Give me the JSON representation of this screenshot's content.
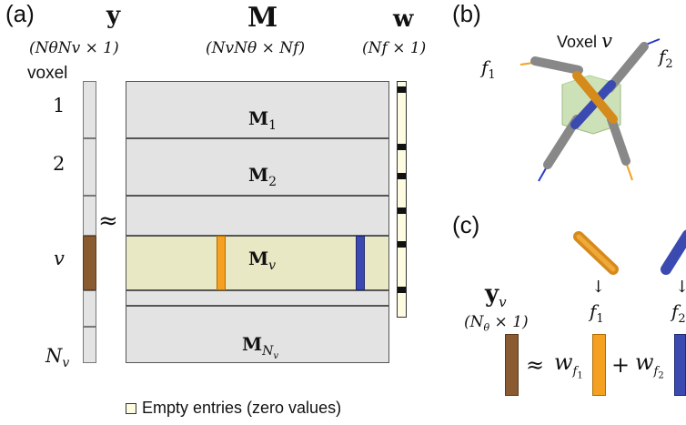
{
  "panels": {
    "a": "(a)",
    "b": "(b)",
    "c": "(c)"
  },
  "panel_a": {
    "y_symbol": "y",
    "y_dim": "(NθNv × 1)",
    "voxel_label": "voxel",
    "voxel_rows": [
      "1",
      "2",
      "v",
      "Nv"
    ],
    "approx": "≈",
    "M_symbol": "M",
    "M_dim": "(NvNθ × Nf)",
    "M_blocks": [
      {
        "base": "M",
        "sub": "1"
      },
      {
        "base": "M",
        "sub": "2"
      },
      {
        "base": "M",
        "sub": "v"
      },
      {
        "base": "M",
        "sub": "Nv"
      }
    ],
    "w_symbol": "w",
    "w_dim": "(Nf × 1)",
    "legend_text": "Empty entries (zero values)"
  },
  "panel_b": {
    "voxel_label": "Voxel",
    "voxel_symbol": "v",
    "f1": "f1",
    "f2": "f2"
  },
  "panel_c": {
    "y_symbol": "y",
    "y_sub": "v",
    "y_dim": "(Nθ × 1)",
    "f1": "f1",
    "f2": "f2",
    "arrow": "↓",
    "approx": "≈",
    "w1_base": "w",
    "w1_sub": "f1",
    "plus": "+",
    "w2_base": "w",
    "w2_sub": "f2"
  },
  "colors": {
    "grey_fill": "#e3e3e3",
    "border": "#555555",
    "highlight": "#e9e8c4",
    "empty": "#fdfbe0",
    "brown": "#8a5a30",
    "orange": "#f5a020",
    "blue": "#3a4ab0",
    "black": "#111111"
  }
}
